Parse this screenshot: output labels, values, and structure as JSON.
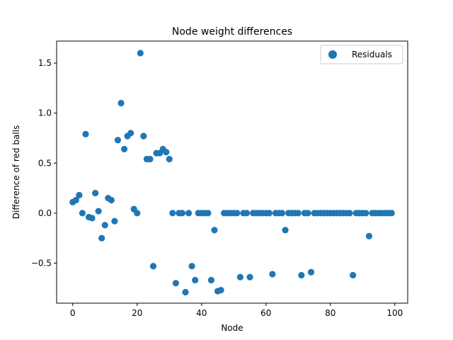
{
  "chart_data": {
    "type": "scatter",
    "title": "Node weight differences",
    "xlabel": "Node",
    "ylabel": "Difference of red balls",
    "xlim": [
      -5,
      104
    ],
    "ylim": [
      -0.9,
      1.72
    ],
    "xticks": [
      0,
      20,
      40,
      60,
      80,
      100
    ],
    "xtick_labels": [
      "0",
      "20",
      "40",
      "60",
      "80",
      "100"
    ],
    "yticks": [
      -0.5,
      0.0,
      0.5,
      1.0,
      1.5
    ],
    "ytick_labels": [
      "−0.5",
      "0.0",
      "0.5",
      "1.0",
      "1.5"
    ],
    "grid": false,
    "legend": "upper-right",
    "color": "#1f77b4",
    "series": [
      {
        "name": "Residuals",
        "x": [
          0,
          1,
          2,
          3,
          4,
          5,
          6,
          7,
          8,
          9,
          10,
          11,
          12,
          13,
          14,
          15,
          16,
          17,
          18,
          19,
          20,
          21,
          22,
          23,
          24,
          25,
          26,
          27,
          28,
          29,
          30,
          31,
          32,
          33,
          34,
          35,
          36,
          37,
          38,
          39,
          40,
          41,
          42,
          43,
          44,
          45,
          46,
          47,
          48,
          49,
          50,
          51,
          52,
          53,
          54,
          55,
          56,
          57,
          58,
          59,
          60,
          61,
          62,
          63,
          64,
          65,
          66,
          67,
          68,
          69,
          70,
          71,
          72,
          73,
          74,
          75,
          76,
          77,
          78,
          79,
          80,
          81,
          82,
          83,
          84,
          85,
          86,
          87,
          88,
          89,
          90,
          91,
          92,
          93,
          94,
          95,
          96,
          97,
          98,
          99
        ],
        "y": [
          0.11,
          0.13,
          0.18,
          0.0,
          0.79,
          -0.04,
          -0.05,
          0.2,
          0.02,
          -0.25,
          -0.12,
          0.15,
          0.13,
          -0.08,
          0.73,
          1.1,
          0.64,
          0.77,
          0.8,
          0.04,
          0.0,
          1.6,
          0.77,
          0.54,
          0.54,
          -0.53,
          0.6,
          0.6,
          0.64,
          0.61,
          0.54,
          0.0,
          -0.7,
          0.0,
          0.0,
          -0.79,
          0.0,
          -0.53,
          -0.67,
          0.0,
          0.0,
          0.0,
          0.0,
          -0.67,
          -0.17,
          -0.78,
          -0.77,
          0.0,
          0.0,
          0.0,
          0.0,
          0.0,
          -0.64,
          0.0,
          0.0,
          -0.64,
          0.0,
          0.0,
          0.0,
          0.0,
          0.0,
          0.0,
          -0.61,
          0.0,
          0.0,
          0.0,
          -0.17,
          0.0,
          0.0,
          0.0,
          0.0,
          -0.62,
          0.0,
          0.0,
          -0.59,
          0.0,
          0.0,
          0.0,
          0.0,
          0.0,
          0.0,
          0.0,
          0.0,
          0.0,
          0.0,
          0.0,
          0.0,
          -0.62,
          0.0,
          0.0,
          0.0,
          0.0,
          -0.23,
          0.0,
          0.0,
          0.0,
          0.0,
          0.0,
          0.0,
          0.0
        ]
      }
    ]
  }
}
